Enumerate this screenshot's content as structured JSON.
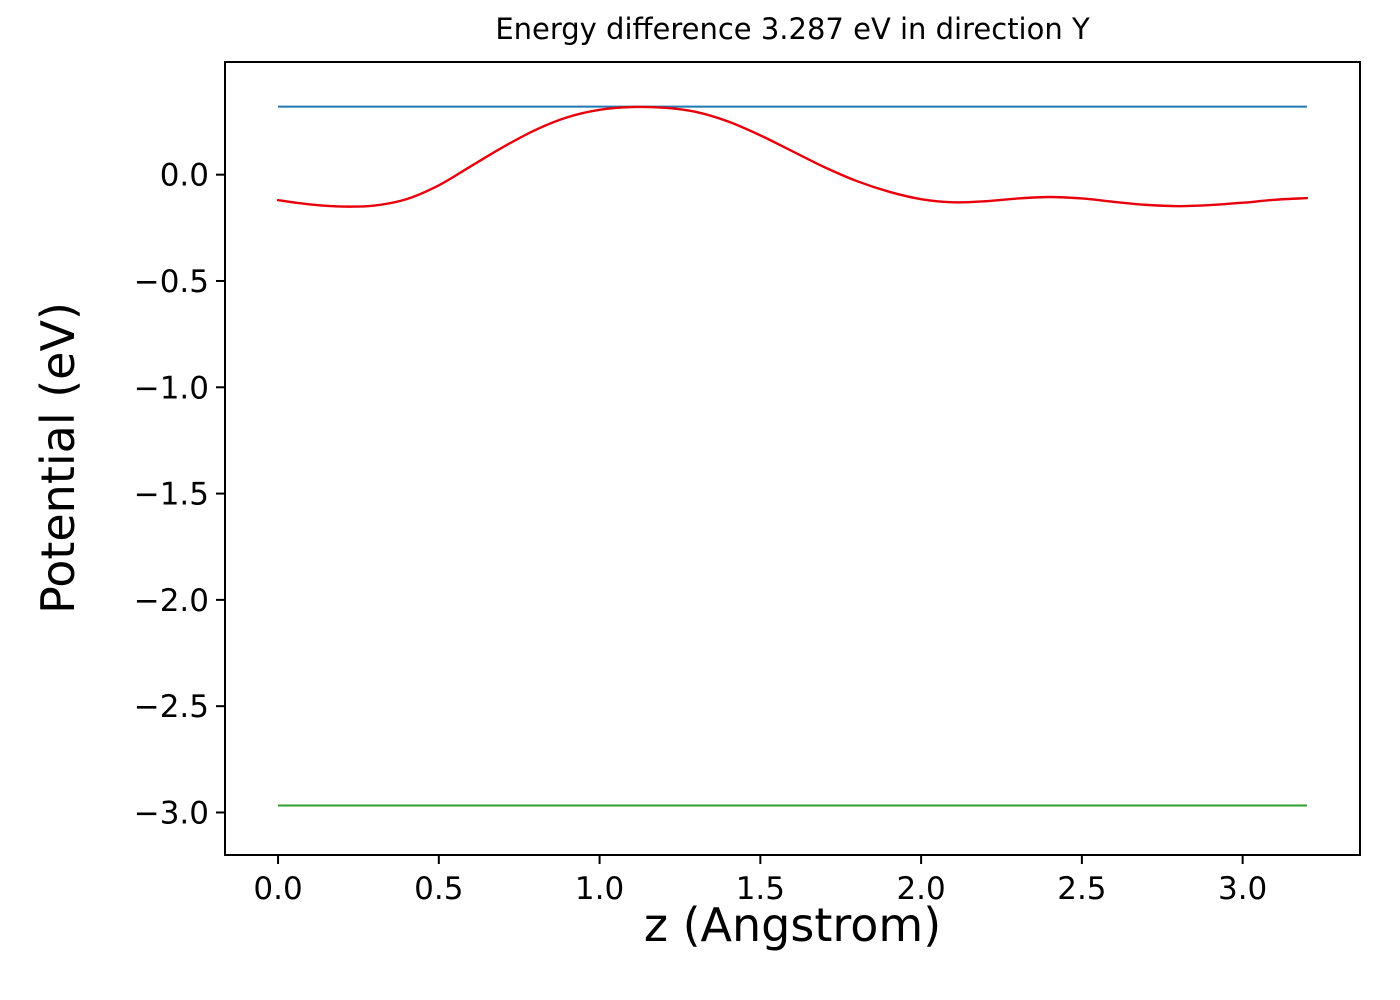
{
  "chart_data": {
    "type": "line",
    "title": "Energy difference 3.287 eV in direction Y",
    "xlabel": "z (Angstrom)",
    "ylabel": "Potential (eV)",
    "energy_difference_eV": 3.287,
    "direction": "Y",
    "xlim": [
      -0.165,
      3.365
    ],
    "ylim": [
      -3.2,
      0.53
    ],
    "grid": false,
    "legend": "none",
    "x_ticks": [
      {
        "value": 0.0,
        "label": "0.0"
      },
      {
        "value": 0.5,
        "label": "0.5"
      },
      {
        "value": 1.0,
        "label": "1.0"
      },
      {
        "value": 1.5,
        "label": "1.5"
      },
      {
        "value": 2.0,
        "label": "2.0"
      },
      {
        "value": 2.5,
        "label": "2.5"
      },
      {
        "value": 3.0,
        "label": "3.0"
      }
    ],
    "y_ticks": [
      {
        "value": 0.0,
        "label": "0.0"
      },
      {
        "value": -0.5,
        "label": "−0.5"
      },
      {
        "value": -1.0,
        "label": "−1.0"
      },
      {
        "value": -1.5,
        "label": "−1.5"
      },
      {
        "value": -2.0,
        "label": "−2.0"
      },
      {
        "value": -2.5,
        "label": "−2.5"
      },
      {
        "value": -3.0,
        "label": "−3.0"
      }
    ],
    "series": [
      {
        "name": "vacuum-level-line",
        "color": "#1f77b4",
        "width": 2,
        "smooth": false,
        "x": [
          0.0,
          3.2
        ],
        "y": [
          0.32,
          0.32
        ]
      },
      {
        "name": "reference-level-line",
        "color": "#2ca02c",
        "width": 2,
        "smooth": false,
        "x": [
          0.0,
          3.2
        ],
        "y": [
          -2.967,
          -2.967
        ]
      },
      {
        "name": "planar-averaged-potential-curve",
        "color": "#e8000b",
        "width": 2.4,
        "smooth": true,
        "x": [
          0.0,
          0.1,
          0.2,
          0.3,
          0.4,
          0.5,
          0.6,
          0.7,
          0.8,
          0.9,
          1.0,
          1.1,
          1.2,
          1.3,
          1.4,
          1.5,
          1.6,
          1.7,
          1.8,
          1.9,
          2.0,
          2.1,
          2.2,
          2.3,
          2.4,
          2.5,
          2.6,
          2.7,
          2.8,
          2.9,
          3.0,
          3.1,
          3.2
        ],
        "y": [
          -0.12,
          -0.14,
          -0.15,
          -0.145,
          -0.115,
          -0.05,
          0.04,
          0.13,
          0.21,
          0.27,
          0.305,
          0.318,
          0.315,
          0.295,
          0.25,
          0.185,
          0.11,
          0.035,
          -0.03,
          -0.08,
          -0.115,
          -0.13,
          -0.125,
          -0.112,
          -0.105,
          -0.112,
          -0.128,
          -0.142,
          -0.148,
          -0.143,
          -0.132,
          -0.118,
          -0.11
        ]
      }
    ]
  }
}
